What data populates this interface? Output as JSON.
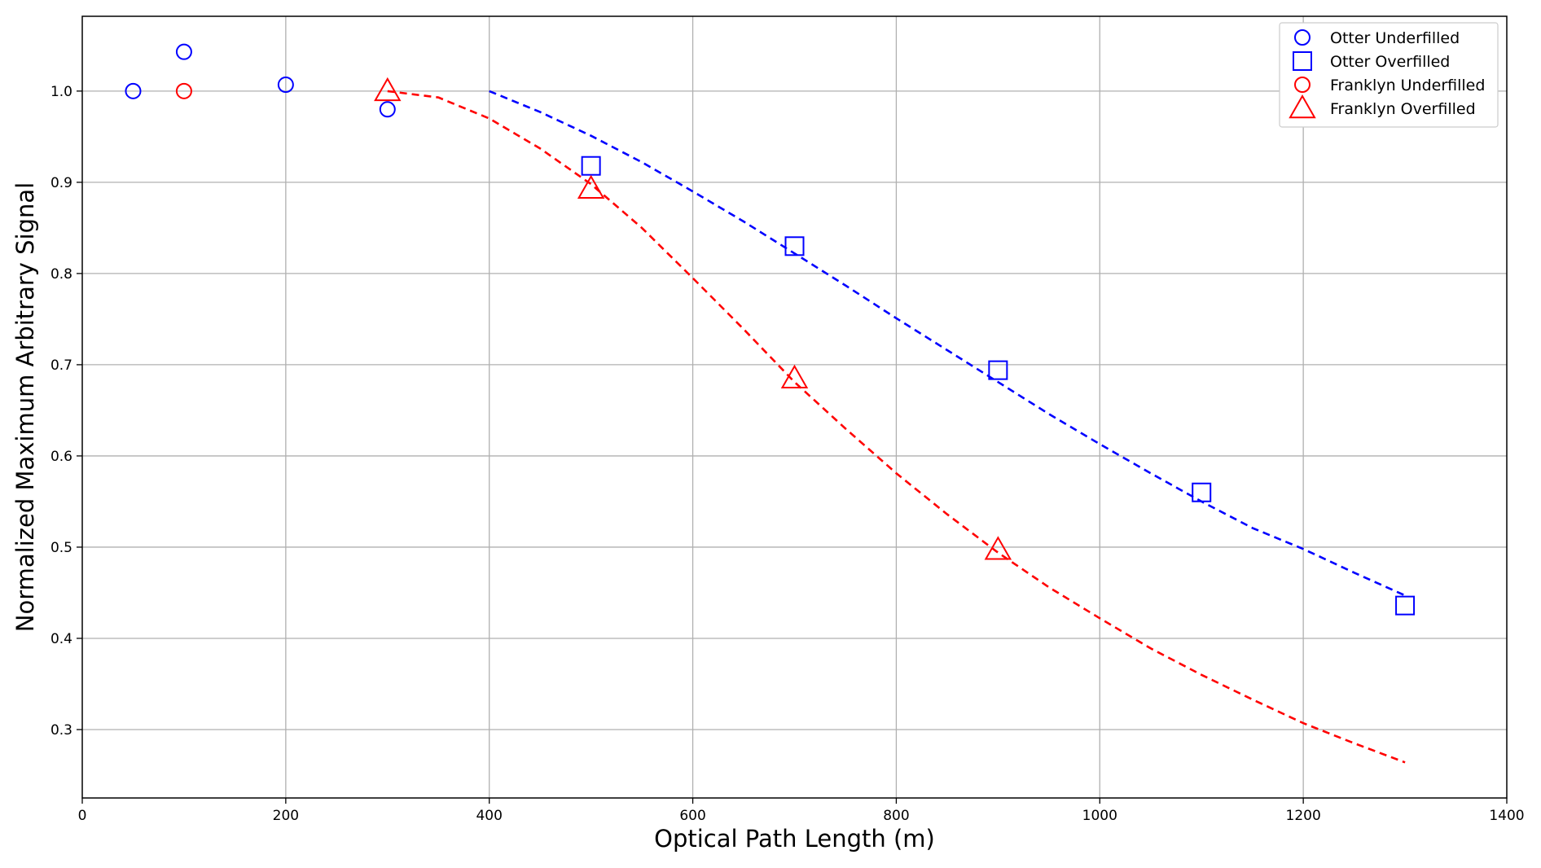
{
  "chart_data": {
    "type": "scatter",
    "title": "",
    "xlabel": "Optical Path Length (m)",
    "ylabel": "Normalized Maximum Arbitrary Signal",
    "xlim": [
      0,
      1400
    ],
    "ylim": [
      0.225,
      1.082
    ],
    "xticks": [
      0,
      200,
      400,
      600,
      800,
      1000,
      1200,
      1400
    ],
    "yticks": [
      0.3,
      0.4,
      0.5,
      0.6,
      0.7,
      0.8,
      0.9,
      1.0
    ],
    "xtick_labels": [
      "0",
      "200",
      "400",
      "600",
      "800",
      "1000",
      "1200",
      "1400"
    ],
    "ytick_labels": [
      "0.3",
      "0.4",
      "0.5",
      "0.6",
      "0.7",
      "0.8",
      "0.9",
      "1.0"
    ],
    "grid": true,
    "legend_position": "top-right",
    "series": [
      {
        "name": "Otter Underfilled",
        "marker": "circle",
        "size": "small",
        "color": "#0000ff",
        "x": [
          50,
          100,
          200,
          300
        ],
        "y": [
          1.0,
          1.043,
          1.007,
          0.98
        ]
      },
      {
        "name": "Otter Overfilled",
        "marker": "square",
        "size": "large",
        "color": "#0000ff",
        "x": [
          500,
          700,
          900,
          1100,
          1300
        ],
        "y": [
          0.918,
          0.83,
          0.694,
          0.56,
          0.436
        ]
      },
      {
        "name": "Franklyn Underfilled",
        "marker": "circle",
        "size": "small",
        "color": "#ff0000",
        "x": [
          100
        ],
        "y": [
          1.0
        ]
      },
      {
        "name": "Franklyn Overfilled",
        "marker": "triangle",
        "size": "large",
        "color": "#ff0000",
        "x": [
          300,
          500,
          700,
          900
        ],
        "y": [
          1.0,
          0.893,
          0.685,
          0.497
        ]
      }
    ],
    "fit_lines": [
      {
        "color": "#0000ff",
        "style": "dashed",
        "x": [
          400,
          450,
          500,
          550,
          600,
          650,
          700,
          750,
          800,
          850,
          900,
          950,
          1000,
          1050,
          1100,
          1150,
          1200,
          1250,
          1300
        ],
        "y": [
          1.0,
          0.977,
          0.951,
          0.922,
          0.89,
          0.857,
          0.822,
          0.787,
          0.751,
          0.716,
          0.681,
          0.646,
          0.613,
          0.581,
          0.55,
          0.521,
          0.498,
          0.472,
          0.447
        ]
      },
      {
        "color": "#ff0000",
        "style": "dashed",
        "x": [
          300,
          350,
          400,
          450,
          500,
          550,
          600,
          650,
          700,
          750,
          800,
          850,
          900,
          950,
          1000,
          1050,
          1100,
          1150,
          1200,
          1250,
          1300
        ],
        "y": [
          1.0,
          0.993,
          0.97,
          0.937,
          0.898,
          0.85,
          0.795,
          0.739,
          0.681,
          0.63,
          0.581,
          0.536,
          0.494,
          0.456,
          0.422,
          0.389,
          0.36,
          0.333,
          0.307,
          0.285,
          0.264
        ]
      }
    ]
  }
}
